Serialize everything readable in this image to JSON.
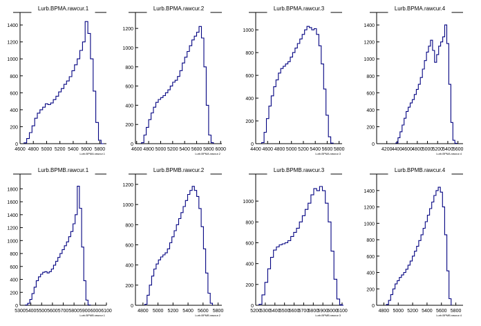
{
  "chart_data": [
    {
      "type": "bar",
      "title": "Lurb.BPMA.rawcur.1",
      "xlabel": "Lurb.BPMA.rawcur.1",
      "xlim": [
        4600,
        5900
      ],
      "ylim": [
        0,
        1450
      ],
      "xticks": [
        4600,
        4800,
        5000,
        5200,
        5400,
        5600,
        5800
      ],
      "yticks": [
        0,
        200,
        400,
        600,
        800,
        1000,
        1200,
        1400
      ],
      "x": [
        4680,
        4720,
        4760,
        4800,
        4840,
        4880,
        4920,
        4960,
        5000,
        5040,
        5080,
        5120,
        5160,
        5200,
        5240,
        5280,
        5320,
        5360,
        5400,
        5440,
        5480,
        5520,
        5560,
        5600,
        5640,
        5680,
        5720,
        5760,
        5800,
        5840
      ],
      "values": [
        10,
        60,
        130,
        210,
        300,
        360,
        400,
        430,
        470,
        460,
        480,
        520,
        560,
        610,
        650,
        700,
        740,
        790,
        860,
        930,
        1000,
        1100,
        1200,
        1440,
        1300,
        1000,
        620,
        250,
        40,
        0
      ]
    },
    {
      "type": "bar",
      "title": "Lurb.BPMA.rawcur.2",
      "xlabel": "Lurb.BPMA.rawcur.2",
      "xlim": [
        4580,
        6020
      ],
      "ylim": [
        0,
        1280
      ],
      "xticks": [
        4600,
        4800,
        5000,
        5200,
        5400,
        5600,
        5800,
        6000
      ],
      "yticks": [
        0,
        200,
        400,
        600,
        800,
        1000,
        1200
      ],
      "x": [
        4700,
        4740,
        4780,
        4820,
        4860,
        4900,
        4940,
        4980,
        5020,
        5060,
        5100,
        5140,
        5180,
        5220,
        5260,
        5300,
        5340,
        5380,
        5420,
        5460,
        5500,
        5540,
        5580,
        5620,
        5660,
        5700,
        5740,
        5780,
        5820,
        5860
      ],
      "values": [
        10,
        90,
        170,
        250,
        320,
        380,
        430,
        460,
        480,
        500,
        530,
        560,
        600,
        640,
        660,
        700,
        760,
        840,
        900,
        960,
        1020,
        1080,
        1120,
        1160,
        1220,
        1100,
        800,
        400,
        90,
        10
      ]
    },
    {
      "type": "bar",
      "title": "Lurb.BPMA.rawcur.3",
      "xlabel": "Lurb.BPMA.rawcur.3",
      "xlim": [
        4400,
        5850
      ],
      "ylim": [
        0,
        1080
      ],
      "xticks": [
        4400,
        4600,
        4800,
        5000,
        5200,
        5400,
        5600,
        5800
      ],
      "yticks": [
        0,
        200,
        400,
        600,
        800,
        1000
      ],
      "x": [
        4520,
        4560,
        4600,
        4640,
        4680,
        4720,
        4760,
        4800,
        4840,
        4880,
        4920,
        4960,
        5000,
        5040,
        5080,
        5120,
        5160,
        5200,
        5240,
        5280,
        5320,
        5360,
        5400,
        5440,
        5480,
        5520,
        5560,
        5600,
        5640,
        5680
      ],
      "values": [
        10,
        100,
        220,
        330,
        420,
        500,
        560,
        620,
        660,
        680,
        700,
        720,
        760,
        800,
        840,
        880,
        920,
        960,
        1000,
        1030,
        1020,
        1000,
        1010,
        960,
        860,
        700,
        480,
        250,
        60,
        5
      ]
    },
    {
      "type": "bar",
      "title": "Lurb.BPMA.rawcur.4",
      "xlabel": "Lurb.BPMA.rawcur.4",
      "xlim": [
        4000,
        5700
      ],
      "ylim": [
        0,
        1450
      ],
      "xticks": [
        4200,
        4400,
        4600,
        4800,
        5000,
        5200,
        5400,
        5600
      ],
      "yticks": [
        0,
        200,
        400,
        600,
        800,
        1000,
        1200,
        1400
      ],
      "x": [
        4400,
        4440,
        4480,
        4520,
        4560,
        4600,
        4640,
        4680,
        4720,
        4760,
        4800,
        4840,
        4880,
        4920,
        4960,
        5000,
        5040,
        5080,
        5120,
        5160,
        5200,
        5240,
        5280,
        5320,
        5360,
        5400,
        5440,
        5480,
        5520,
        5560
      ],
      "values": [
        10,
        70,
        140,
        220,
        300,
        380,
        430,
        480,
        520,
        580,
        640,
        700,
        780,
        880,
        980,
        1080,
        1150,
        1220,
        1100,
        960,
        1050,
        1150,
        1200,
        1260,
        1400,
        1180,
        700,
        250,
        40,
        5
      ]
    },
    {
      "type": "bar",
      "title": "Lurb.BPMB.rawcur.1",
      "xlabel": "Lurb.BPMB.rawcur.1",
      "xlim": [
        5300,
        6100
      ],
      "ylim": [
        0,
        1900
      ],
      "xticks": [
        5300,
        5400,
        5500,
        5600,
        5700,
        5800,
        5900,
        6000,
        6100
      ],
      "yticks": [
        0,
        200,
        400,
        600,
        800,
        1000,
        1200,
        1400,
        1600,
        1800
      ],
      "x": [
        5360,
        5380,
        5400,
        5420,
        5440,
        5460,
        5480,
        5500,
        5520,
        5540,
        5560,
        5580,
        5600,
        5620,
        5640,
        5660,
        5680,
        5700,
        5720,
        5740,
        5760,
        5780,
        5800,
        5820,
        5840,
        5860,
        5880,
        5900,
        5920,
        5940
      ],
      "values": [
        5,
        30,
        90,
        180,
        280,
        380,
        440,
        480,
        510,
        520,
        500,
        520,
        560,
        620,
        680,
        740,
        800,
        860,
        920,
        980,
        1060,
        1140,
        1260,
        1400,
        1840,
        1500,
        900,
        380,
        80,
        5
      ]
    },
    {
      "type": "bar",
      "title": "Lurb.BPMB.rawcur.2",
      "xlabel": "Lurb.BPMB.rawcur.2",
      "xlim": [
        4700,
        5850
      ],
      "ylim": [
        0,
        1220
      ],
      "xticks": [
        4800,
        5000,
        5200,
        5400,
        5600,
        5800
      ],
      "yticks": [
        0,
        200,
        400,
        600,
        800,
        1000,
        1200
      ],
      "x": [
        4840,
        4870,
        4900,
        4930,
        4960,
        4990,
        5020,
        5050,
        5080,
        5110,
        5140,
        5170,
        5200,
        5230,
        5260,
        5290,
        5320,
        5350,
        5380,
        5410,
        5440,
        5470,
        5500,
        5530,
        5560,
        5590,
        5620,
        5650,
        5680,
        5710
      ],
      "values": [
        10,
        100,
        200,
        290,
        360,
        410,
        450,
        480,
        500,
        520,
        560,
        620,
        680,
        740,
        800,
        860,
        920,
        980,
        1040,
        1100,
        1140,
        1180,
        1140,
        1080,
        960,
        780,
        560,
        320,
        120,
        20
      ]
    },
    {
      "type": "bar",
      "title": "Lurb.BPMB.rawcur.3",
      "xlabel": "Lurb.BPMB.rawcur.3",
      "xlim": [
        5200,
        6100
      ],
      "ylim": [
        0,
        1180
      ],
      "xticks": [
        5200,
        5300,
        5400,
        5500,
        5600,
        5700,
        5800,
        5900,
        6000,
        6100
      ],
      "yticks": [
        0,
        200,
        400,
        600,
        800,
        1000
      ],
      "x": [
        5250,
        5280,
        5310,
        5340,
        5370,
        5400,
        5430,
        5460,
        5490,
        5520,
        5550,
        5580,
        5610,
        5640,
        5670,
        5700,
        5730,
        5760,
        5790,
        5820,
        5850,
        5880,
        5910,
        5940,
        5970,
        6000,
        6030,
        6060,
        6090,
        6100
      ],
      "values": [
        10,
        100,
        220,
        350,
        460,
        530,
        560,
        580,
        590,
        600,
        620,
        660,
        700,
        740,
        800,
        860,
        920,
        980,
        1060,
        1120,
        1100,
        1140,
        1100,
        980,
        800,
        520,
        250,
        60,
        5,
        0
      ]
    },
    {
      "type": "bar",
      "title": "Lurb.BPMB.rawcur.4",
      "xlabel": "Lurb.BPMB.rawcur.4",
      "xlim": [
        4700,
        5900
      ],
      "ylim": [
        0,
        1500
      ],
      "xticks": [
        4800,
        5000,
        5200,
        5400,
        5600,
        5800
      ],
      "yticks": [
        0,
        200,
        400,
        600,
        800,
        1000,
        1200,
        1400
      ],
      "x": [
        4850,
        4880,
        4910,
        4940,
        4970,
        5000,
        5030,
        5060,
        5090,
        5120,
        5150,
        5180,
        5210,
        5240,
        5270,
        5300,
        5330,
        5360,
        5390,
        5420,
        5450,
        5480,
        5510,
        5540,
        5570,
        5600,
        5630,
        5660,
        5690,
        5720
      ],
      "values": [
        10,
        60,
        130,
        200,
        260,
        300,
        340,
        370,
        400,
        440,
        490,
        540,
        600,
        660,
        720,
        790,
        860,
        940,
        1020,
        1100,
        1180,
        1260,
        1340,
        1400,
        1440,
        1380,
        1200,
        860,
        420,
        80
      ]
    }
  ],
  "colors": {
    "histogram_line": "#000080",
    "axis": "#000000",
    "background": "#ffffff"
  }
}
